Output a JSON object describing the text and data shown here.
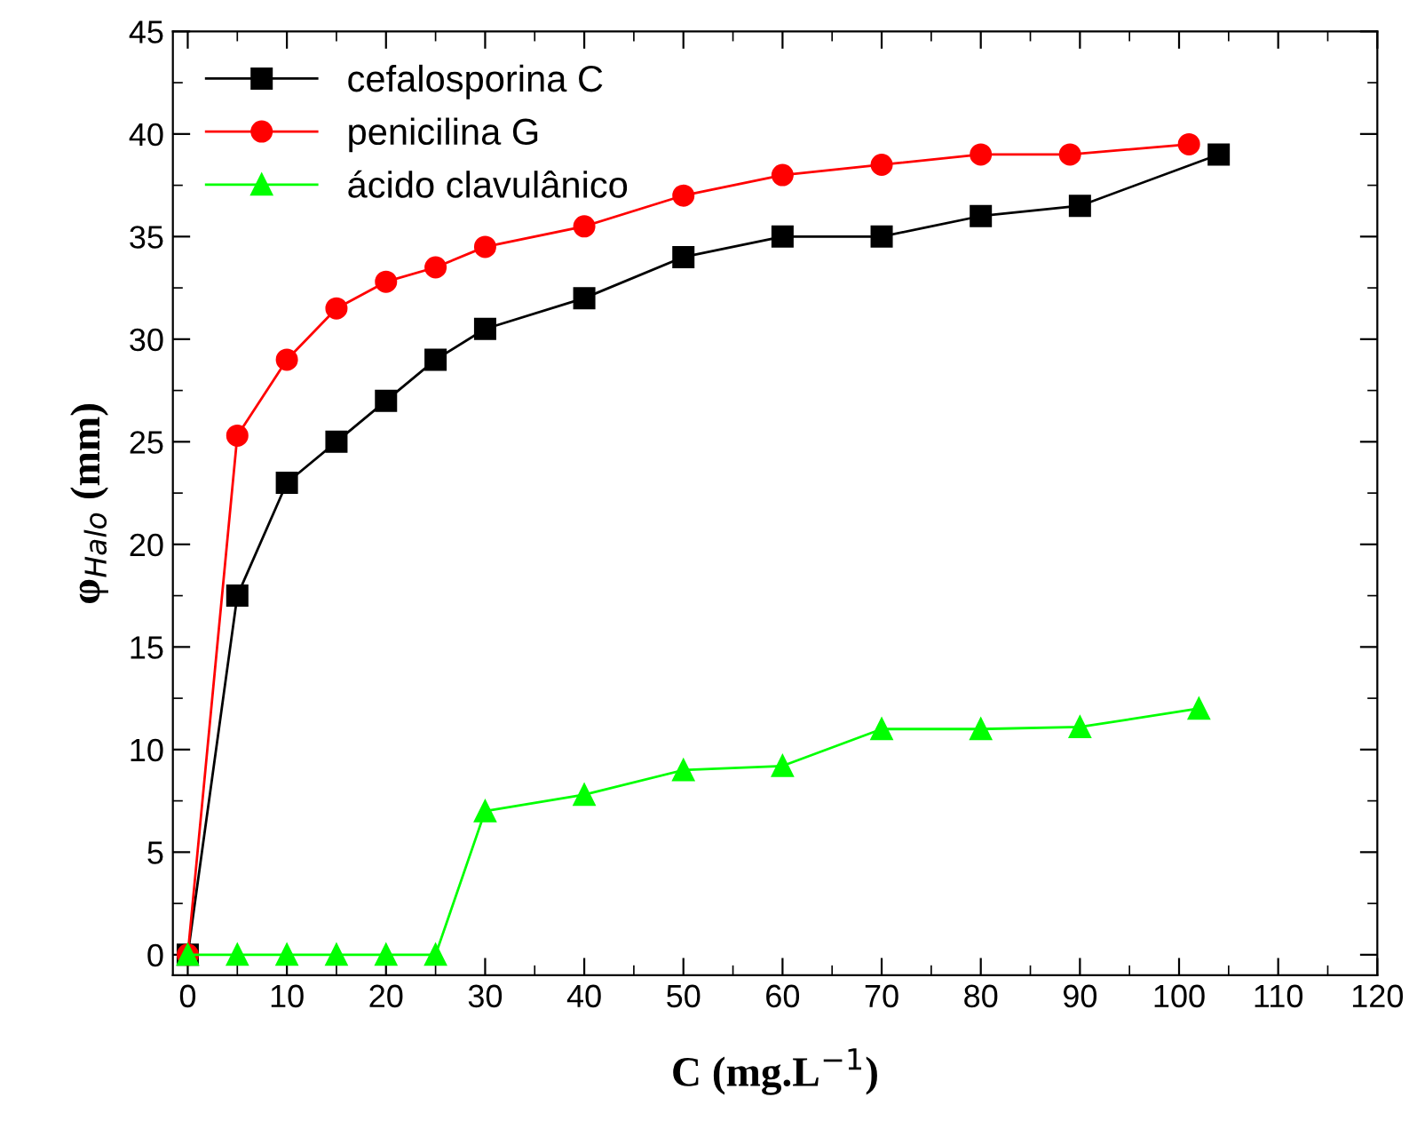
{
  "chart_data": {
    "type": "line",
    "xlabel": "C (mg.L$^{−1}$)",
    "ylabel": "φ$_{Halo}$ (mm)",
    "xlim": [
      -1.5,
      120
    ],
    "xticks": [
      0,
      10,
      20,
      30,
      40,
      50,
      60,
      70,
      80,
      90,
      100,
      110,
      120
    ],
    "ylim": [
      -1,
      45
    ],
    "yticks": [
      0,
      5,
      10,
      15,
      20,
      25,
      30,
      35,
      40,
      45
    ],
    "grid": false,
    "legend": "top left",
    "series": [
      {
        "name": "cefalosporina C",
        "color": "#000000",
        "marker": "square",
        "x": [
          0,
          5,
          10,
          15,
          20,
          25,
          30,
          40,
          50,
          60,
          70,
          80,
          90,
          104
        ],
        "values": [
          0,
          17.5,
          23,
          25,
          27,
          29,
          30.5,
          32,
          34,
          35,
          35,
          36,
          36.5,
          39
        ]
      },
      {
        "name": "penicilina G",
        "color": "#ff0000",
        "marker": "circle",
        "x": [
          0,
          5,
          10,
          15,
          20,
          25,
          30,
          40,
          50,
          60,
          70,
          80,
          89,
          101
        ],
        "values": [
          0,
          25.3,
          29,
          31.5,
          32.8,
          33.5,
          34.5,
          35.5,
          37,
          38,
          38.5,
          39,
          39,
          39.5
        ]
      },
      {
        "name": "ácido clavulânico",
        "color": "#00ff00",
        "marker": "triangle",
        "x": [
          0,
          5,
          10,
          15,
          20,
          25,
          30,
          40,
          50,
          60,
          70,
          80,
          90,
          102
        ],
        "values": [
          0,
          0,
          0,
          0,
          0,
          0,
          7,
          7.8,
          9,
          9.2,
          11,
          11,
          11.1,
          12
        ]
      }
    ]
  }
}
